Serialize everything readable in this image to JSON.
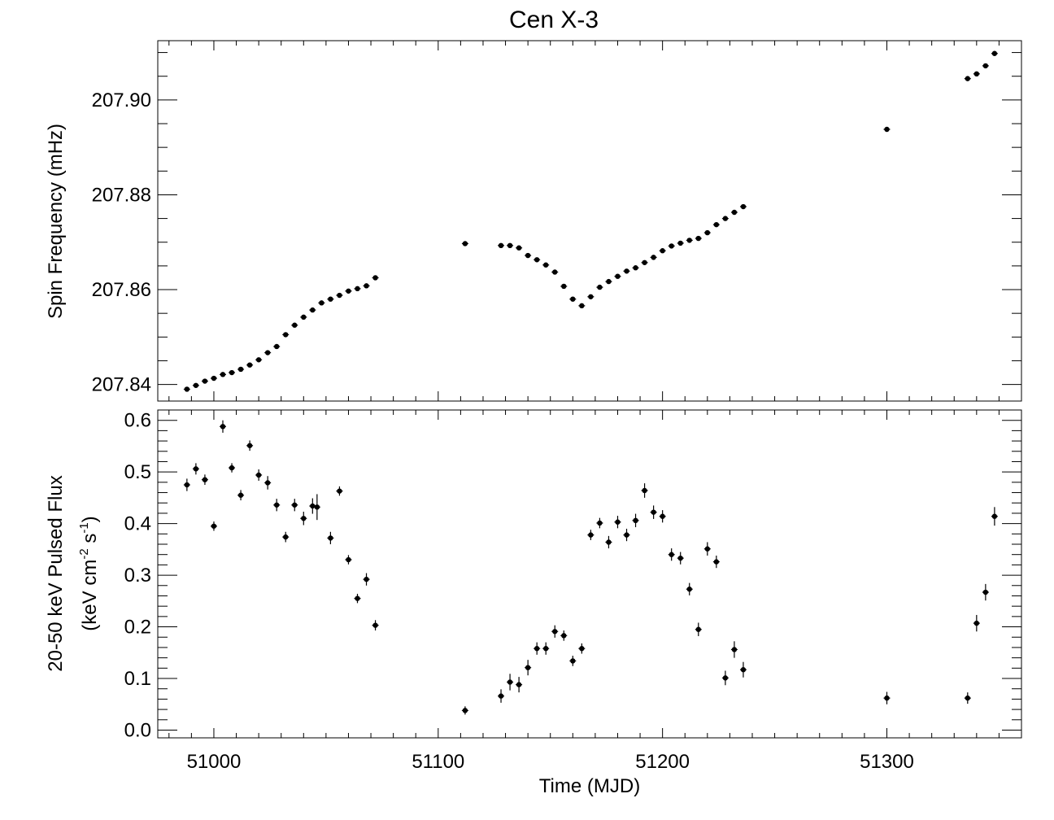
{
  "figure": {
    "title": "Cen X-3",
    "xlabel": "Time (MJD)"
  },
  "chart_data": [
    {
      "type": "scatter",
      "panel": "top",
      "title": "Cen X-3",
      "xlabel": "",
      "ylabel": "Spin Frequency (mHz)",
      "xlim": [
        50975,
        51360
      ],
      "ylim": [
        207.8365,
        207.9125
      ],
      "xticks": [
        51000,
        51100,
        51200,
        51300
      ],
      "xtick_labels": [
        "",
        "",
        "",
        ""
      ],
      "yticks": [
        207.84,
        207.86,
        207.88,
        207.9
      ],
      "ytick_labels": [
        "207.84",
        "207.86",
        "207.88",
        "207.90"
      ],
      "grid": false,
      "series": [
        {
          "x": [
            50988,
            50992,
            50996,
            51000,
            51004,
            51008,
            51012,
            51016,
            51020,
            51024,
            51028,
            51032,
            51036,
            51040,
            51044,
            51048,
            51052,
            51056,
            51060,
            51064,
            51068,
            51072,
            51112,
            51128,
            51132,
            51136,
            51140,
            51144,
            51148,
            51152,
            51156,
            51160,
            51164,
            51168,
            51172,
            51176,
            51180,
            51184,
            51188,
            51192,
            51196,
            51200,
            51204,
            51208,
            51212,
            51216,
            51220,
            51224,
            51228,
            51232,
            51236,
            51300,
            51336,
            51340,
            51344,
            51348
          ],
          "y": [
            207.839,
            207.8398,
            207.8407,
            207.8413,
            207.8421,
            207.8425,
            207.8432,
            207.8441,
            207.8452,
            207.8467,
            207.848,
            207.8505,
            207.8525,
            207.8542,
            207.8557,
            207.8572,
            207.858,
            207.8588,
            207.8597,
            207.8602,
            207.8608,
            207.8625,
            207.8697,
            207.8693,
            207.8693,
            207.8688,
            207.8672,
            207.8663,
            207.8652,
            207.8637,
            207.8607,
            207.858,
            207.8566,
            207.8585,
            207.8605,
            207.8617,
            207.8628,
            207.8639,
            207.8646,
            207.8657,
            207.8668,
            207.8682,
            207.8692,
            207.8698,
            207.8704,
            207.8708,
            207.872,
            207.8737,
            207.875,
            207.8763,
            207.8775,
            207.8938,
            207.9045,
            207.9055,
            207.9072,
            207.9098
          ]
        }
      ]
    },
    {
      "type": "scatter",
      "panel": "bottom",
      "xlabel": "Time (MJD)",
      "ylabel": "20-50 keV Pulsed Flux",
      "ylabel_unit_parts": [
        "(keV cm",
        "-2",
        " s",
        "-1",
        ")"
      ],
      "xlim": [
        50975,
        51360
      ],
      "ylim": [
        -0.015,
        0.62
      ],
      "xticks": [
        51000,
        51100,
        51200,
        51300
      ],
      "xtick_labels": [
        "51000",
        "51100",
        "51200",
        "51300"
      ],
      "yticks": [
        0.0,
        0.1,
        0.2,
        0.3,
        0.4,
        0.5,
        0.6
      ],
      "ytick_labels": [
        "0.0",
        "0.1",
        "0.2",
        "0.3",
        "0.4",
        "0.5",
        "0.6"
      ],
      "grid": false,
      "series": [
        {
          "x": [
            50988,
            50992,
            50996,
            51000,
            51004,
            51008,
            51012,
            51016,
            51020,
            51024,
            51028,
            51032,
            51036,
            51040,
            51044,
            51046,
            51052,
            51056,
            51060,
            51064,
            51068,
            51072,
            51112,
            51128,
            51132,
            51136,
            51140,
            51144,
            51148,
            51152,
            51156,
            51160,
            51164,
            51168,
            51172,
            51176,
            51180,
            51184,
            51188,
            51192,
            51196,
            51200,
            51204,
            51208,
            51212,
            51216,
            51220,
            51224,
            51228,
            51232,
            51236,
            51300,
            51336,
            51340,
            51344,
            51348
          ],
          "y": [
            0.475,
            0.506,
            0.485,
            0.395,
            0.588,
            0.508,
            0.455,
            0.551,
            0.494,
            0.479,
            0.436,
            0.374,
            0.436,
            0.41,
            0.434,
            0.432,
            0.372,
            0.463,
            0.33,
            0.255,
            0.292,
            0.203,
            0.038,
            0.066,
            0.093,
            0.088,
            0.121,
            0.158,
            0.158,
            0.191,
            0.183,
            0.134,
            0.158,
            0.378,
            0.401,
            0.364,
            0.403,
            0.378,
            0.406,
            0.464,
            0.422,
            0.414,
            0.34,
            0.333,
            0.273,
            0.195,
            0.351,
            0.326,
            0.101,
            0.156,
            0.117,
            0.062,
            0.062,
            0.207,
            0.267,
            0.414
          ],
          "yerr": [
            0.012,
            0.011,
            0.01,
            0.009,
            0.012,
            0.009,
            0.01,
            0.01,
            0.011,
            0.013,
            0.012,
            0.01,
            0.012,
            0.013,
            0.015,
            0.025,
            0.012,
            0.009,
            0.009,
            0.009,
            0.012,
            0.01,
            0.008,
            0.013,
            0.016,
            0.015,
            0.015,
            0.012,
            0.012,
            0.012,
            0.01,
            0.01,
            0.01,
            0.01,
            0.01,
            0.012,
            0.012,
            0.012,
            0.013,
            0.014,
            0.013,
            0.012,
            0.012,
            0.012,
            0.012,
            0.013,
            0.013,
            0.012,
            0.014,
            0.016,
            0.015,
            0.012,
            0.011,
            0.016,
            0.016,
            0.018
          ]
        }
      ]
    }
  ]
}
